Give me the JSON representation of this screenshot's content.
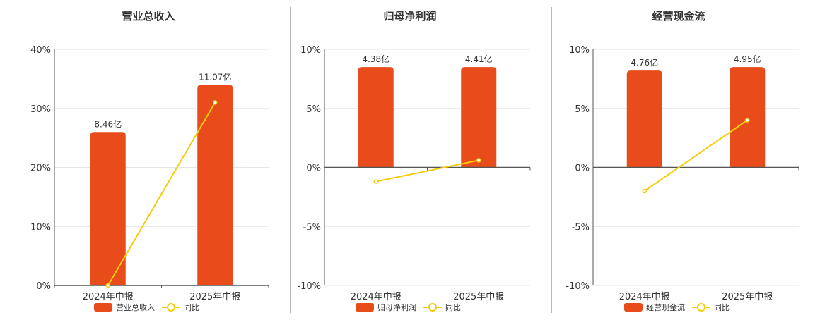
{
  "chart_data": [
    {
      "type": "bar",
      "title": "营业总收入",
      "categories": [
        "2024年中报",
        "2025年中报"
      ],
      "series": [
        {
          "name": "营业总收入",
          "type": "bar",
          "values": [
            26.0,
            34.0
          ],
          "labels": [
            "8.46亿",
            "11.07亿"
          ]
        },
        {
          "name": "同比",
          "type": "line",
          "values": [
            0.0,
            31.0
          ]
        }
      ],
      "ylim": [
        0,
        40
      ],
      "yticks": [
        0,
        10,
        20,
        30,
        40
      ],
      "ytick_labels": [
        "0%",
        "10%",
        "20%",
        "30%",
        "40%"
      ],
      "grid": true,
      "legend_position": "bottom"
    },
    {
      "type": "bar",
      "title": "归母净利润",
      "categories": [
        "2024年中报",
        "2025年中报"
      ],
      "series": [
        {
          "name": "归母净利润",
          "type": "bar",
          "values": [
            8.5,
            8.5
          ],
          "labels": [
            "4.38亿",
            "4.41亿"
          ]
        },
        {
          "name": "同比",
          "type": "line",
          "values": [
            -1.2,
            0.6
          ]
        }
      ],
      "ylim": [
        -10,
        10
      ],
      "yticks": [
        -10,
        -5,
        0,
        5,
        10
      ],
      "ytick_labels": [
        "-10%",
        "-5%",
        "0%",
        "5%",
        "10%"
      ],
      "grid": true,
      "legend_position": "bottom"
    },
    {
      "type": "bar",
      "title": "经营现金流",
      "categories": [
        "2024年中报",
        "2025年中报"
      ],
      "series": [
        {
          "name": "经营现金流",
          "type": "bar",
          "values": [
            8.2,
            8.5
          ],
          "labels": [
            "4.76亿",
            "4.95亿"
          ]
        },
        {
          "name": "同比",
          "type": "line",
          "values": [
            -2.0,
            4.0
          ]
        }
      ],
      "ylim": [
        -10,
        10
      ],
      "yticks": [
        -10,
        -5,
        0,
        5,
        10
      ],
      "ytick_labels": [
        "-10%",
        "-5%",
        "0%",
        "5%",
        "10%"
      ],
      "grid": true,
      "legend_position": "bottom"
    }
  ],
  "colors": {
    "bar": "#e84c1a",
    "line": "#f5cc0a",
    "axis": "#555555",
    "grid": "#e6e6e6",
    "text": "#333333"
  }
}
